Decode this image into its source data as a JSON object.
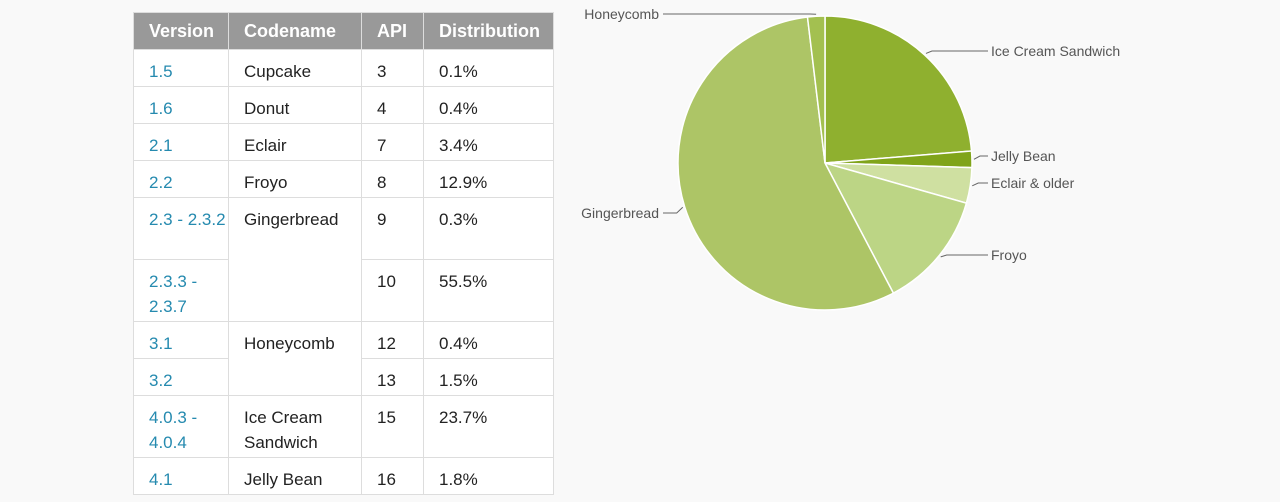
{
  "table": {
    "headers": [
      "Version",
      "Codename",
      "API",
      "Distribution"
    ],
    "rows": [
      {
        "version": "1.5",
        "codename": "Cupcake",
        "api": "3",
        "distribution": "0.1%"
      },
      {
        "version": "1.6",
        "codename": "Donut",
        "api": "4",
        "distribution": "0.4%"
      },
      {
        "version": "2.1",
        "codename": "Eclair",
        "api": "7",
        "distribution": "3.4%"
      },
      {
        "version": "2.2",
        "codename": "Froyo",
        "api": "8",
        "distribution": "12.9%"
      },
      {
        "version": "2.3 - 2.3.2",
        "codename": "Gingerbread",
        "api": "9",
        "distribution": "0.3%"
      },
      {
        "version": "2.3.3 - 2.3.7",
        "codename": "",
        "api": "10",
        "distribution": "55.5%"
      },
      {
        "version": "3.1",
        "codename": "Honeycomb",
        "api": "12",
        "distribution": "0.4%"
      },
      {
        "version": "3.2",
        "codename": "",
        "api": "13",
        "distribution": "1.5%"
      },
      {
        "version": "4.0.3 - 4.0.4",
        "codename": "Ice Cream Sandwich",
        "api": "15",
        "distribution": "23.7%"
      },
      {
        "version": "4.1",
        "codename": "Jelly Bean",
        "api": "16",
        "distribution": "1.8%"
      }
    ]
  },
  "chart_data": {
    "type": "pie",
    "slices": [
      {
        "label": "Ice Cream Sandwich",
        "value": 23.7,
        "color": "#8fb02f"
      },
      {
        "label": "Jelly Bean",
        "value": 1.8,
        "color": "#80a41a"
      },
      {
        "label": "Eclair & older",
        "value": 3.9,
        "color": "#cfe0a1"
      },
      {
        "label": "Froyo",
        "value": 12.9,
        "color": "#bcd585"
      },
      {
        "label": "Gingerbread",
        "value": 55.8,
        "color": "#adc566"
      },
      {
        "label": "Honeycomb",
        "value": 1.9,
        "color": "#a3c050"
      }
    ]
  }
}
